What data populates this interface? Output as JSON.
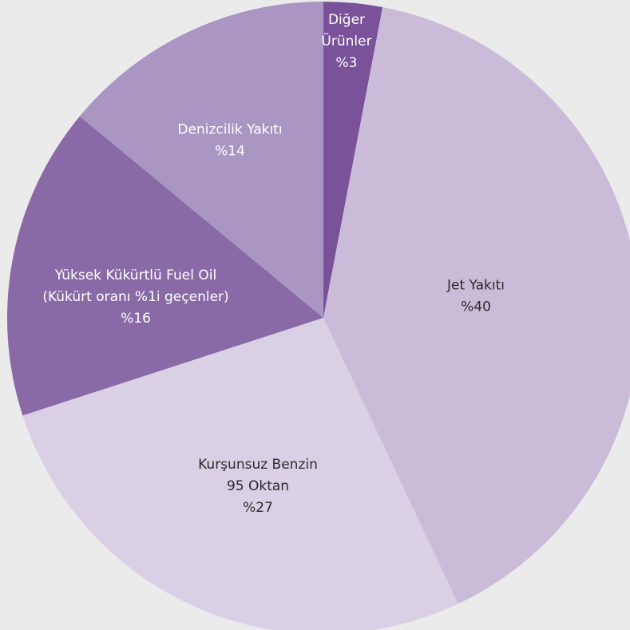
{
  "chart_data": {
    "type": "pie",
    "title": "",
    "slices": [
      {
        "label_lines": [
          "Diğer",
          "Ürünler",
          "%3"
        ],
        "value": 3,
        "color": "#7a5299",
        "text_color": "#ffffff"
      },
      {
        "label_lines": [
          "Jet Yakıtı",
          "%40"
        ],
        "value": 40,
        "color": "#cabcd9",
        "text_color": "#2b2b2b"
      },
      {
        "label_lines": [
          "Kurşunsuz Benzin",
          "95 Oktan",
          "%27"
        ],
        "value": 27,
        "color": "#dad0e5",
        "text_color": "#2b2b2b"
      },
      {
        "label_lines": [
          "Yüksek Kükürtlü Fuel Oil",
          "(Kükürt oranı %1i geçenler)",
          "%16"
        ],
        "value": 16,
        "color": "#8a6aa6",
        "text_color": "#ffffff"
      },
      {
        "label_lines": [
          "Denizcilik Yakıtı",
          "%14"
        ],
        "value": 14,
        "color": "#a996c2",
        "text_color": "#ffffff"
      }
    ],
    "start_angle_deg": 0,
    "direction": "clockwise",
    "legend": "none"
  }
}
